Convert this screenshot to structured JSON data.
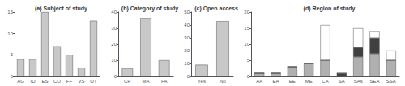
{
  "chart_data": [
    {
      "type": "bar",
      "title": "(a) Subject of study",
      "categories": [
        "AG",
        "ID",
        "ES",
        "CO",
        "FF",
        "VS",
        "OT"
      ],
      "values": [
        4,
        4,
        15,
        7,
        5,
        2,
        13
      ],
      "color": "#c8c8c8",
      "ylim": [
        0,
        15
      ],
      "yticks": [
        0,
        5,
        10,
        15
      ],
      "grid": false
    },
    {
      "type": "bar",
      "title": "(b) Category of study",
      "categories": [
        "CR",
        "MA",
        "PA"
      ],
      "values": [
        5,
        36,
        10
      ],
      "color": "#c8c8c8",
      "ylim": [
        0,
        40
      ],
      "yticks": [
        0,
        10,
        20,
        30,
        40
      ],
      "grid": false
    },
    {
      "type": "bar",
      "title": "(c) Open access",
      "categories": [
        "Yes",
        "No"
      ],
      "values": [
        9,
        43
      ],
      "color": "#c8c8c8",
      "ylim": [
        0,
        50
      ],
      "yticks": [
        0,
        10,
        20,
        30,
        40,
        50
      ],
      "grid": false
    },
    {
      "type": "bar",
      "title": "(d) Region of study",
      "categories": [
        "AA",
        "EA",
        "EE",
        "ME",
        "CA",
        "SA",
        "SAs",
        "SEA",
        "SSA"
      ],
      "series": [
        {
          "color": "#b0b0b0",
          "values": [
            1,
            1,
            3,
            4,
            5,
            0,
            6,
            7,
            5
          ]
        },
        {
          "color": "#404040",
          "values": [
            0,
            0,
            0,
            0,
            0,
            1,
            3,
            5,
            0
          ]
        },
        {
          "color": "#ffffff",
          "values": [
            0,
            0,
            0,
            0,
            11,
            0,
            6,
            2,
            3
          ]
        }
      ],
      "stacked": true,
      "ylim": [
        0,
        20
      ],
      "yticks": [
        0,
        5,
        10,
        15,
        20
      ],
      "grid": false
    }
  ]
}
